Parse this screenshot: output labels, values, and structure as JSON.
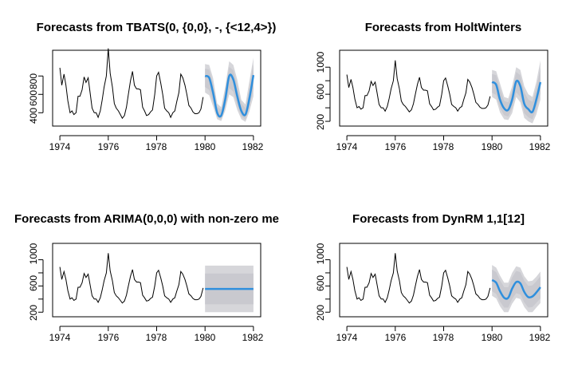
{
  "colors": {
    "history": "#000000",
    "forecast": "#2f8fdd",
    "interval": "#d6d6da",
    "interval80": "#c9c9cf"
  },
  "chart_data": [
    {
      "type": "line",
      "title": "Forecasts from TBATS(0, {0,0}, -, {<12,4>})",
      "x_ticks": [
        "1974",
        "1976",
        "1978",
        "1980",
        "1982"
      ],
      "y_ticks": [
        "400",
        "600",
        "800"
      ],
      "xlim": [
        1973.7,
        1982.3
      ],
      "ylim": [
        255,
        1080
      ],
      "history": [
        {
          "x": 1974.0,
          "y": 890
        },
        {
          "x": 1974.08,
          "y": 700
        },
        {
          "x": 1974.17,
          "y": 820
        },
        {
          "x": 1974.25,
          "y": 700
        },
        {
          "x": 1974.33,
          "y": 530
        },
        {
          "x": 1974.42,
          "y": 400
        },
        {
          "x": 1974.5,
          "y": 420
        },
        {
          "x": 1974.58,
          "y": 380
        },
        {
          "x": 1974.67,
          "y": 400
        },
        {
          "x": 1974.75,
          "y": 580
        },
        {
          "x": 1974.83,
          "y": 580
        },
        {
          "x": 1974.92,
          "y": 650
        },
        {
          "x": 1975.0,
          "y": 790
        },
        {
          "x": 1975.08,
          "y": 730
        },
        {
          "x": 1975.17,
          "y": 780
        },
        {
          "x": 1975.25,
          "y": 620
        },
        {
          "x": 1975.33,
          "y": 450
        },
        {
          "x": 1975.42,
          "y": 400
        },
        {
          "x": 1975.5,
          "y": 400
        },
        {
          "x": 1975.58,
          "y": 350
        },
        {
          "x": 1975.67,
          "y": 420
        },
        {
          "x": 1975.75,
          "y": 540
        },
        {
          "x": 1975.83,
          "y": 680
        },
        {
          "x": 1975.92,
          "y": 800
        },
        {
          "x": 1976.0,
          "y": 1100
        },
        {
          "x": 1976.08,
          "y": 830
        },
        {
          "x": 1976.17,
          "y": 680
        },
        {
          "x": 1976.25,
          "y": 500
        },
        {
          "x": 1976.33,
          "y": 450
        },
        {
          "x": 1976.42,
          "y": 420
        },
        {
          "x": 1976.5,
          "y": 380
        },
        {
          "x": 1976.58,
          "y": 340
        },
        {
          "x": 1976.67,
          "y": 370
        },
        {
          "x": 1976.75,
          "y": 460
        },
        {
          "x": 1976.83,
          "y": 600
        },
        {
          "x": 1976.92,
          "y": 750
        },
        {
          "x": 1977.0,
          "y": 850
        },
        {
          "x": 1977.08,
          "y": 700
        },
        {
          "x": 1977.17,
          "y": 660
        },
        {
          "x": 1977.25,
          "y": 660
        },
        {
          "x": 1977.33,
          "y": 650
        },
        {
          "x": 1977.42,
          "y": 460
        },
        {
          "x": 1977.5,
          "y": 420
        },
        {
          "x": 1977.58,
          "y": 370
        },
        {
          "x": 1977.67,
          "y": 380
        },
        {
          "x": 1977.75,
          "y": 410
        },
        {
          "x": 1977.83,
          "y": 430
        },
        {
          "x": 1977.92,
          "y": 600
        },
        {
          "x": 1978.0,
          "y": 800
        },
        {
          "x": 1978.08,
          "y": 840
        },
        {
          "x": 1978.17,
          "y": 720
        },
        {
          "x": 1978.25,
          "y": 600
        },
        {
          "x": 1978.33,
          "y": 450
        },
        {
          "x": 1978.42,
          "y": 420
        },
        {
          "x": 1978.5,
          "y": 400
        },
        {
          "x": 1978.58,
          "y": 350
        },
        {
          "x": 1978.67,
          "y": 400
        },
        {
          "x": 1978.75,
          "y": 420
        },
        {
          "x": 1978.83,
          "y": 520
        },
        {
          "x": 1978.92,
          "y": 620
        },
        {
          "x": 1979.0,
          "y": 820
        },
        {
          "x": 1979.08,
          "y": 780
        },
        {
          "x": 1979.17,
          "y": 700
        },
        {
          "x": 1979.25,
          "y": 600
        },
        {
          "x": 1979.33,
          "y": 480
        },
        {
          "x": 1979.42,
          "y": 450
        },
        {
          "x": 1979.5,
          "y": 410
        },
        {
          "x": 1979.58,
          "y": 390
        },
        {
          "x": 1979.67,
          "y": 390
        },
        {
          "x": 1979.75,
          "y": 400
        },
        {
          "x": 1979.83,
          "y": 440
        },
        {
          "x": 1979.92,
          "y": 570
        }
      ],
      "forecast": [
        {
          "x": 1980.0,
          "y": 800,
          "lo95": 620,
          "hi95": 930,
          "lo80": 680,
          "hi80": 880
        },
        {
          "x": 1980.17,
          "y": 780,
          "lo95": 590,
          "hi95": 920,
          "lo80": 650,
          "hi80": 870
        },
        {
          "x": 1980.33,
          "y": 620,
          "lo95": 470,
          "hi95": 780,
          "lo80": 520,
          "hi80": 720
        },
        {
          "x": 1980.5,
          "y": 400,
          "lo95": 330,
          "hi95": 500,
          "lo80": 355,
          "hi80": 465
        },
        {
          "x": 1980.67,
          "y": 370,
          "lo95": 310,
          "hi95": 460,
          "lo80": 330,
          "hi80": 430
        },
        {
          "x": 1980.83,
          "y": 540,
          "lo95": 420,
          "hi95": 680,
          "lo80": 460,
          "hi80": 630
        },
        {
          "x": 1981.0,
          "y": 800,
          "lo95": 600,
          "hi95": 960,
          "lo80": 670,
          "hi80": 900
        },
        {
          "x": 1981.17,
          "y": 760,
          "lo95": 570,
          "hi95": 920,
          "lo80": 630,
          "hi80": 860
        },
        {
          "x": 1981.33,
          "y": 580,
          "lo95": 430,
          "hi95": 760,
          "lo80": 480,
          "hi80": 690
        },
        {
          "x": 1981.5,
          "y": 420,
          "lo95": 330,
          "hi95": 540,
          "lo80": 360,
          "hi80": 500
        },
        {
          "x": 1981.67,
          "y": 380,
          "lo95": 300,
          "hi95": 490,
          "lo80": 325,
          "hi80": 450
        },
        {
          "x": 1981.83,
          "y": 550,
          "lo95": 410,
          "hi95": 740,
          "lo80": 460,
          "hi80": 670
        },
        {
          "x": 1982.0,
          "y": 810,
          "lo95": 580,
          "hi95": 1000,
          "lo80": 660,
          "hi80": 930
        }
      ]
    },
    {
      "type": "line",
      "title": "Forecasts from HoltWinters",
      "x_ticks": [
        "1974",
        "1976",
        "1978",
        "1980",
        "1982"
      ],
      "y_ticks": [
        "200",
        "600",
        "1000"
      ],
      "minor_y_ticks": [
        400,
        800
      ],
      "xlim": [
        1973.7,
        1982.3
      ],
      "ylim": [
        130,
        1250
      ],
      "history": "same as panel 1",
      "forecast": [
        {
          "x": 1980.0,
          "y": 780,
          "lo95": 560,
          "hi95": 960,
          "lo80": 620,
          "hi80": 900
        },
        {
          "x": 1980.17,
          "y": 740,
          "lo95": 520,
          "hi95": 940,
          "lo80": 590,
          "hi80": 880
        },
        {
          "x": 1980.33,
          "y": 520,
          "lo95": 330,
          "hi95": 760,
          "lo80": 400,
          "hi80": 680
        },
        {
          "x": 1980.5,
          "y": 390,
          "lo95": 230,
          "hi95": 560,
          "lo80": 290,
          "hi80": 500
        },
        {
          "x": 1980.67,
          "y": 370,
          "lo95": 220,
          "hi95": 540,
          "lo80": 270,
          "hi80": 480
        },
        {
          "x": 1980.83,
          "y": 520,
          "lo95": 320,
          "hi95": 720,
          "lo80": 390,
          "hi80": 650
        },
        {
          "x": 1981.0,
          "y": 790,
          "lo95": 560,
          "hi95": 1000,
          "lo80": 630,
          "hi80": 930
        },
        {
          "x": 1981.17,
          "y": 720,
          "lo95": 480,
          "hi95": 960,
          "lo80": 560,
          "hi80": 880
        },
        {
          "x": 1981.33,
          "y": 460,
          "lo95": 250,
          "hi95": 720,
          "lo80": 320,
          "hi80": 630
        },
        {
          "x": 1981.5,
          "y": 380,
          "lo95": 200,
          "hi95": 600,
          "lo80": 260,
          "hi80": 520
        },
        {
          "x": 1981.67,
          "y": 340,
          "lo95": 170,
          "hi95": 560,
          "lo80": 230,
          "hi80": 490
        },
        {
          "x": 1981.83,
          "y": 520,
          "lo95": 300,
          "hi95": 780,
          "lo80": 380,
          "hi80": 690
        },
        {
          "x": 1982.0,
          "y": 780,
          "lo95": 520,
          "hi95": 1100,
          "lo80": 610,
          "hi80": 990
        }
      ]
    },
    {
      "type": "line",
      "title": "Forecasts from ARIMA(0,0,0) with non-zero me",
      "x_ticks": [
        "1974",
        "1976",
        "1978",
        "1980",
        "1982"
      ],
      "y_ticks": [
        "200",
        "600",
        "1000"
      ],
      "minor_y_ticks": [
        400,
        800
      ],
      "xlim": [
        1973.7,
        1982.3
      ],
      "ylim": [
        130,
        1250
      ],
      "history": "same as panel 1",
      "forecast": [
        {
          "x": 1980.0,
          "y": 555,
          "lo95": 200,
          "hi95": 910,
          "lo80": 320,
          "hi80": 790
        },
        {
          "x": 1982.0,
          "y": 555,
          "lo95": 200,
          "hi95": 910,
          "lo80": 320,
          "hi80": 790
        }
      ]
    },
    {
      "type": "line",
      "title": "Forecasts from DynRM 1,1[12]",
      "x_ticks": [
        "1974",
        "1976",
        "1978",
        "1980",
        "1982"
      ],
      "y_ticks": [
        "200",
        "600",
        "1000"
      ],
      "minor_y_ticks": [
        400,
        800
      ],
      "xlim": [
        1973.7,
        1982.3
      ],
      "ylim": [
        130,
        1250
      ],
      "history": "same as panel 1",
      "forecast": [
        {
          "x": 1980.0,
          "y": 690,
          "lo95": 450,
          "hi95": 920,
          "lo80": 520,
          "hi80": 850
        },
        {
          "x": 1980.17,
          "y": 650,
          "lo95": 410,
          "hi95": 880,
          "lo80": 480,
          "hi80": 810
        },
        {
          "x": 1980.33,
          "y": 520,
          "lo95": 290,
          "hi95": 760,
          "lo80": 360,
          "hi80": 690
        },
        {
          "x": 1980.5,
          "y": 420,
          "lo95": 200,
          "hi95": 650,
          "lo80": 270,
          "hi80": 580
        },
        {
          "x": 1980.67,
          "y": 420,
          "lo95": 200,
          "hi95": 650,
          "lo80": 270,
          "hi80": 580
        },
        {
          "x": 1980.83,
          "y": 560,
          "lo95": 330,
          "hi95": 800,
          "lo80": 400,
          "hi80": 730
        },
        {
          "x": 1981.0,
          "y": 660,
          "lo95": 420,
          "hi95": 900,
          "lo80": 490,
          "hi80": 830
        },
        {
          "x": 1981.17,
          "y": 640,
          "lo95": 400,
          "hi95": 880,
          "lo80": 470,
          "hi80": 810
        },
        {
          "x": 1981.33,
          "y": 510,
          "lo95": 280,
          "hi95": 750,
          "lo80": 350,
          "hi80": 680
        },
        {
          "x": 1981.5,
          "y": 430,
          "lo95": 200,
          "hi95": 670,
          "lo80": 270,
          "hi80": 600
        },
        {
          "x": 1981.67,
          "y": 440,
          "lo95": 200,
          "hi95": 680,
          "lo80": 280,
          "hi80": 610
        },
        {
          "x": 1981.83,
          "y": 500,
          "lo95": 270,
          "hi95": 740,
          "lo80": 340,
          "hi80": 670
        },
        {
          "x": 1982.0,
          "y": 580,
          "lo95": 340,
          "hi95": 820,
          "lo80": 410,
          "hi80": 750
        }
      ]
    }
  ]
}
